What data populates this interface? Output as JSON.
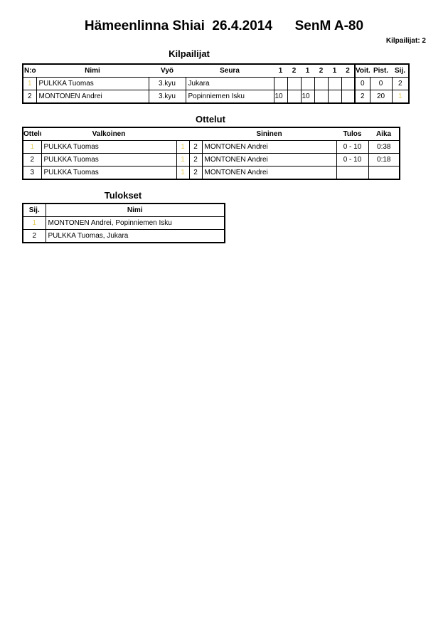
{
  "title": "Hämeenlinna Shiai  26.4.2014      SenM A-80",
  "competitor_count": "Kilpailijat: 2",
  "competitors": {
    "caption": "Kilpailijat",
    "headers": [
      "N:o",
      "Nimi",
      "Vyö",
      "Seura",
      "1",
      "2",
      "1",
      "2",
      "1",
      "2",
      "Voit.",
      "Pist.",
      "Sij."
    ],
    "rows": [
      {
        "no": "1",
        "name": "PULKKA Tuomas",
        "belt": "3.kyu",
        "club": "Jukara",
        "scores": [
          "",
          "",
          "",
          "",
          "",
          ""
        ],
        "wins": "0",
        "points": "0",
        "place": "2"
      },
      {
        "no": "2",
        "name": "MONTONEN Andrei",
        "belt": "3.kyu",
        "club": "Popinniemen Isku",
        "scores": [
          "10",
          "",
          "10",
          "",
          "",
          ""
        ],
        "wins": "2",
        "points": "20",
        "place": "1"
      }
    ]
  },
  "matches": {
    "caption": "Ottelut",
    "headers": [
      "Ottelu",
      "Valkoinen",
      "Sininen",
      "Tulos",
      "Aika"
    ],
    "rows": [
      {
        "no": "1",
        "white": "PULKKA Tuomas",
        "wn": "1",
        "bn": "2",
        "blue": "MONTONEN Andrei",
        "result": "0 - 10",
        "time": "0:38"
      },
      {
        "no": "2",
        "white": "PULKKA Tuomas",
        "wn": "1",
        "bn": "2",
        "blue": "MONTONEN Andrei",
        "result": "0 - 10",
        "time": "0:18"
      },
      {
        "no": "3",
        "white": "PULKKA Tuomas",
        "wn": "1",
        "bn": "2",
        "blue": "MONTONEN Andrei",
        "result": "",
        "time": ""
      }
    ]
  },
  "results": {
    "caption": "Tulokset",
    "headers": [
      "Sij.",
      "Nimi"
    ],
    "rows": [
      {
        "place": "1",
        "name": "MONTONEN Andrei, Popinniemen Isku"
      },
      {
        "place": "2",
        "name": "PULKKA Tuomas, Jukara"
      }
    ]
  },
  "colors": {
    "first_digit": "#e8d060"
  }
}
